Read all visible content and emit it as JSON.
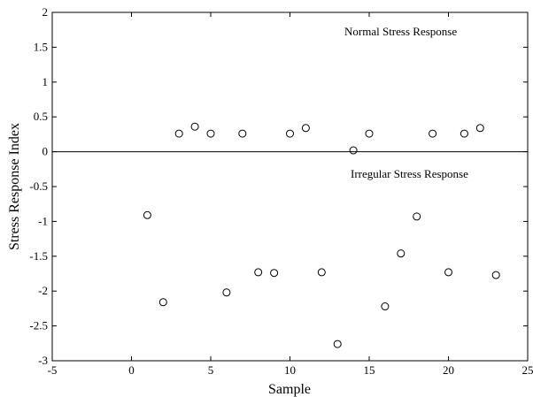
{
  "chart_data": {
    "type": "scatter",
    "title": "",
    "xlabel": "Sample",
    "ylabel": "Stress Response Index",
    "xlim": [
      -5,
      25
    ],
    "ylim": [
      -3,
      2
    ],
    "xticks": [
      "-5",
      "0",
      "5",
      "10",
      "15",
      "20",
      "25"
    ],
    "yticks": [
      "-3",
      "-2.5",
      "-2",
      "-1.5",
      "-1",
      "-0.5",
      "0",
      "0.5",
      "1",
      "1.5",
      "2"
    ],
    "grid": false,
    "reference_line_y": 0,
    "annotations": [
      "Normal Stress Response",
      "Irregular Stress Response"
    ],
    "series": [
      {
        "marker": "circle-open",
        "x": [
          1,
          2,
          3,
          4,
          5,
          6,
          7,
          8,
          9,
          10,
          11,
          12,
          13,
          14,
          15,
          16,
          17,
          18,
          19,
          20,
          21,
          22,
          23
        ],
        "y": [
          -0.91,
          -2.16,
          0.26,
          0.36,
          0.26,
          -2.02,
          0.26,
          -1.73,
          -1.74,
          0.26,
          0.34,
          -1.73,
          -2.76,
          0.02,
          0.26,
          -2.22,
          -1.46,
          -0.93,
          0.26,
          -1.73,
          0.26,
          0.34,
          -1.77
        ]
      }
    ]
  }
}
